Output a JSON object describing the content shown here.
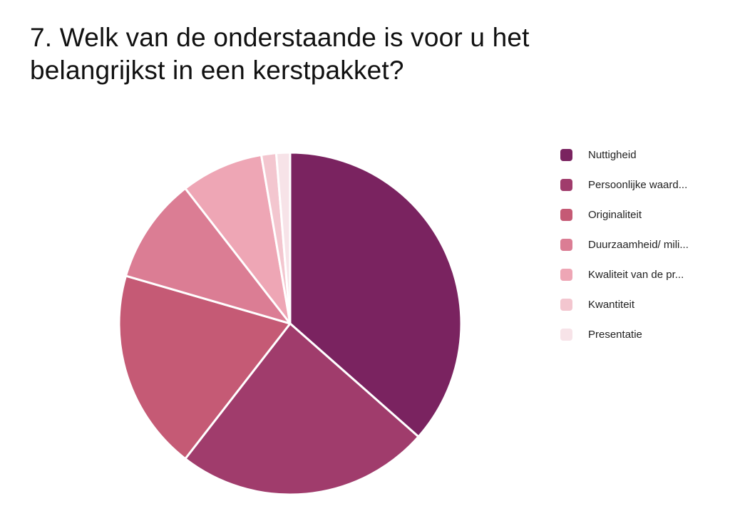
{
  "title": "7. Welk van de onderstaande is voor u het belangrijkst in een kerstpakket?",
  "chart_data": {
    "type": "pie",
    "title": "7. Welk van de onderstaande is voor u het belangrijkst in een kerstpakket?",
    "legend_position": "right",
    "slices": [
      {
        "label": "Nuttigheid",
        "value": 36.5,
        "color": "#7a2360"
      },
      {
        "label": "Persoonlijke waard...",
        "value": 24.0,
        "color": "#a03c6c"
      },
      {
        "label": "Originaliteit",
        "value": 19.0,
        "color": "#c55a75"
      },
      {
        "label": "Duurzaamheid/ mili...",
        "value": 10.0,
        "color": "#db7d94"
      },
      {
        "label": "Kwaliteit van de pr...",
        "value": 7.8,
        "color": "#eea6b5"
      },
      {
        "label": "Kwantiteit",
        "value": 1.4,
        "color": "#f3c6cf"
      },
      {
        "label": "Presentatie",
        "value": 1.3,
        "color": "#f7e3e8"
      }
    ]
  }
}
